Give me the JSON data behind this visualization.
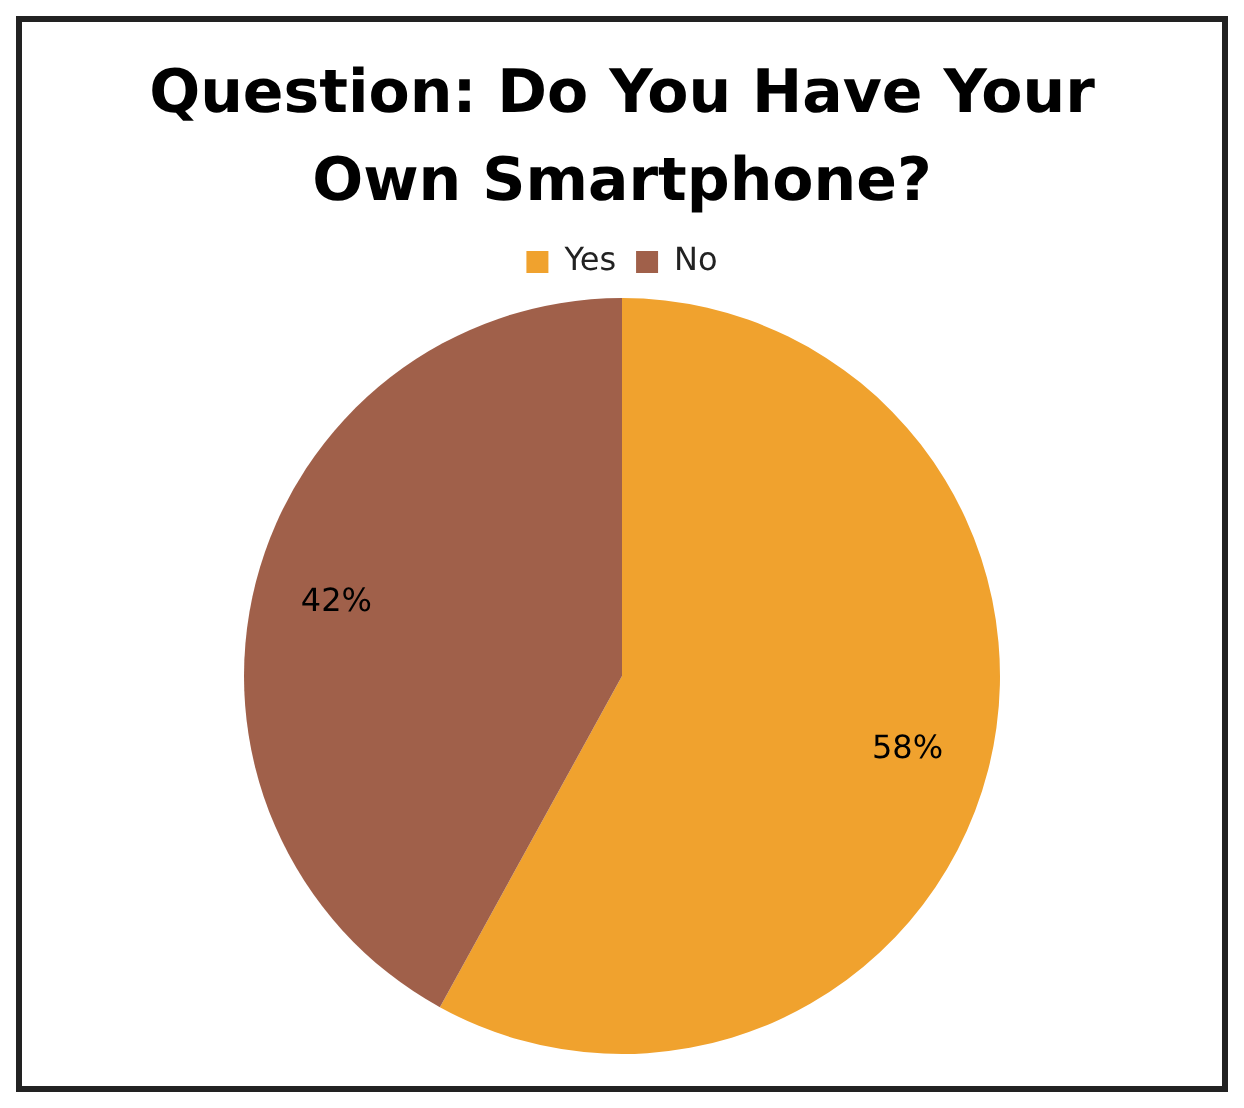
{
  "chart_data": {
    "type": "pie",
    "title": "Question: Do You Have Your Own Smartphone?",
    "categories": [
      "Yes",
      "No"
    ],
    "values": [
      58,
      42
    ],
    "colors": [
      "#f0a22e",
      "#a0604a"
    ],
    "value_labels": [
      "58%",
      "42%"
    ],
    "legend": "top"
  }
}
